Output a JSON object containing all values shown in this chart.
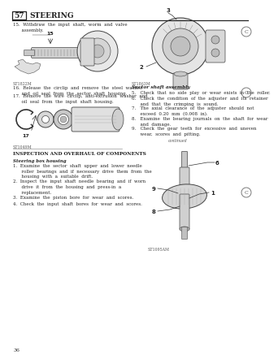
{
  "page_bg": "#ffffff",
  "header_num": "57",
  "header_title": "STEERING",
  "text_color": "#222222",
  "gray_light": "#cccccc",
  "gray_mid": "#999999",
  "item15": "15.  Withdraw  the  input  shaft,  worm  and  valve\n      assembly.",
  "item16": "16.  Release  the  circlip  and  remove  the  steel  washer\n      and  oil  seal  from  the  sector  shaft  housing.",
  "item17": "17.  Remove  the  wire  circlip,  anti-extrusion  washer  and\n      oil  seal  from  the  input  shaft  housing.",
  "sector_title": "Sector shaft assembly",
  "item5": "5.   Check  that  no  side  play  or  wear  exists  in  the  roller.",
  "item6": "6.   Check  the  condition  of  the  adjuster  and  its  retainer\n      and  that  the  crimping  is  sound.",
  "item7": "7.   The  axial  clearance  of  the  adjuster  should  not\n      exceed  0.20  mm  (0.008  in).",
  "item8": "8.   Examine  the  bearing  journals  on  the  shaft  for  wear\n      and  damage.",
  "item9": "9.   Check  the  gear  teeth  for  excessive  and  uneven\n      wear,  scores  and  pitting.",
  "continued": "continued",
  "inspect_title": "INSPECTION AND OVERHAUL OF COMPONENTS",
  "box_title": "Steering box housing",
  "box1": "1.  Examine  the  sector  shaft  upper  and  lower  needle\n      roller  bearings  and  if  necessary  drive  them  from  the\n      housing  with  a  suitable  drift.",
  "box2": "2.  Inspect  the  input  shaft  needle  bearing  and  if  worn\n      drive  it  from  the  housing  and  press-in  a\n      replacement.",
  "box3": "3.  Examine  the  piston  bore  for  wear  and  scores.",
  "box4": "4.  Check  the  input  shaft  bores  for  wear  and  scores.",
  "cap1": "ST1822M",
  "cap2": "ST1863M",
  "cap3": "ST1049M",
  "cap4": "ST1095AM",
  "page_num": "36",
  "col_split": 148
}
